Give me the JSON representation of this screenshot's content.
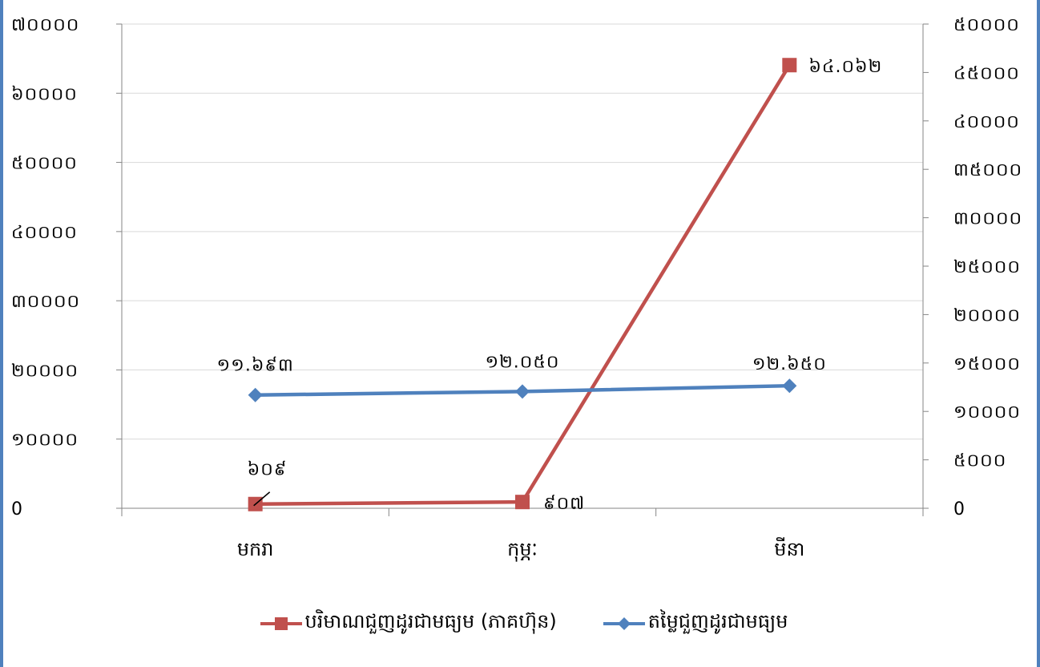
{
  "chart_data": {
    "type": "line",
    "categories": [
      "មករា",
      "កុម្ភៈ",
      "មីនា"
    ],
    "series": [
      {
        "name": "បរិមាណជួញដូរជាមធ្យម (ភាគហ៊ុន)",
        "axis": "left",
        "color": "#c0504d",
        "marker": "square",
        "values": [
          609,
          907,
          64062
        ],
        "labels": [
          "៦០៩",
          "៩០៧",
          "៦៤.០៦២"
        ]
      },
      {
        "name": "តម្លៃជួញដូរជាមធ្យម",
        "axis": "right",
        "color": "#4f81bd",
        "marker": "diamond",
        "values": [
          11693,
          12050,
          12650
        ],
        "labels": [
          "១១.៦៩៣",
          "១២.០៥០",
          "១២.៦៥០"
        ]
      }
    ],
    "left_axis": {
      "ylim": [
        0,
        70000
      ],
      "ticks": [
        0,
        10000,
        20000,
        30000,
        40000,
        50000,
        60000,
        70000
      ],
      "tick_labels": [
        "0",
        "១០០០០",
        "២០០០០",
        "៣០០០០",
        "៤០០០០",
        "៥០០០០",
        "៦០០០០",
        "៧០០០០"
      ]
    },
    "right_axis": {
      "ylim": [
        0,
        50000
      ],
      "ticks": [
        0,
        5000,
        10000,
        15000,
        20000,
        25000,
        30000,
        35000,
        40000,
        45000,
        50000
      ],
      "tick_labels": [
        "0",
        "៥០០០",
        "១០០០០",
        "១៥០០០",
        "២០០០០",
        "២៥០០០",
        "៣០០០០",
        "៣៥០០០",
        "៤០០០០",
        "៤៥០០០",
        "៥០០០០"
      ]
    },
    "grid": true,
    "legend_position": "bottom",
    "colors": {
      "gridline": "#d9d9d9",
      "axis": "#868686"
    }
  }
}
